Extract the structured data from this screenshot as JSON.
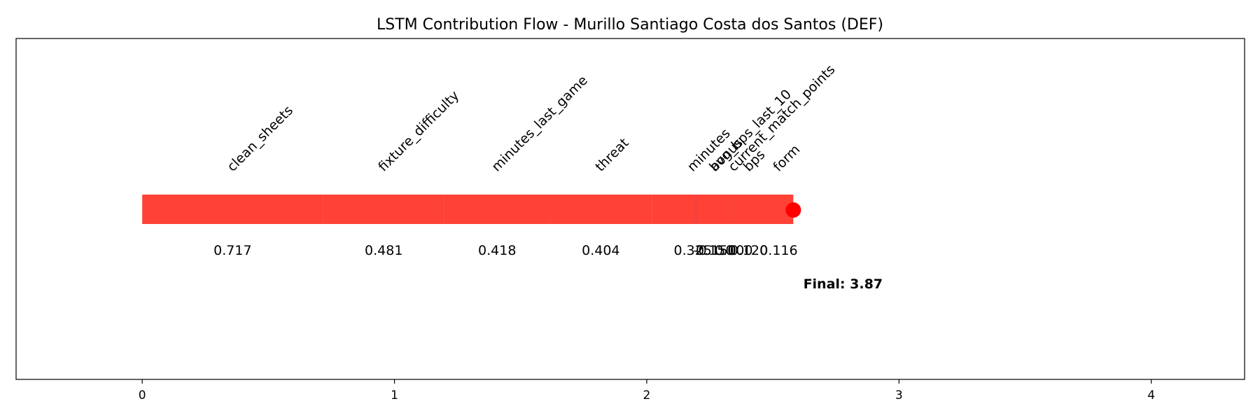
{
  "chart_data": {
    "type": "bar",
    "title": "LSTM Contribution Flow - Murillo Santiago Costa dos Santos (DEF)",
    "xlabel": "",
    "ylabel": "",
    "xlim": [
      -0.5,
      4.37
    ],
    "xticks": [
      0,
      1,
      2,
      3,
      4
    ],
    "grid": false,
    "base": 0,
    "colors": {
      "positive": "#ff4136",
      "negative": "#0074d9",
      "final_marker": "#ff0000"
    },
    "contributions": [
      {
        "feature": "clean_sheets",
        "value": 0.717
      },
      {
        "feature": "fixture_difficulty",
        "value": 0.481
      },
      {
        "feature": "minutes_last_game",
        "value": 0.418
      },
      {
        "feature": "threat",
        "value": 0.404
      },
      {
        "feature": "minutes",
        "value": 0.325
      },
      {
        "feature": "current_match_points",
        "value": 0.0
      },
      {
        "feature": "avg_bps_last_10",
        "value": -0.15
      },
      {
        "feature": "bonus",
        "value": 0.15
      },
      {
        "feature": "bps",
        "value": 0.12
      },
      {
        "feature": "form",
        "value": 0.116
      }
    ],
    "value_labels": [
      "0.717",
      "0.481",
      "0.418",
      "0.404",
      "0.325",
      "0.000",
      "-0.150",
      "0.150",
      "0.120",
      "0.116"
    ],
    "final_label": "Final: 3.87",
    "final_value": 3.87
  }
}
